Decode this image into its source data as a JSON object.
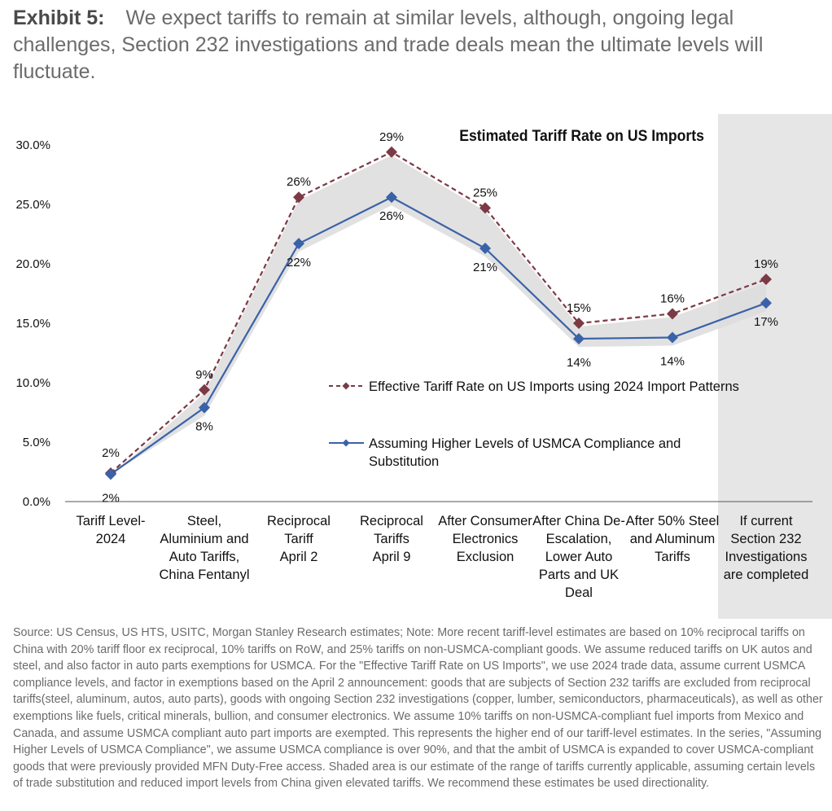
{
  "exhibit": {
    "label": "Exhibit 5:",
    "text": "We expect tariffs to remain at similar levels, although, ongoing legal challenges, Section 232 investigations and trade deals mean the ultimate levels will fluctuate."
  },
  "chart_data": {
    "type": "line",
    "title": "Estimated Tariff Rate on US Imports",
    "categories": [
      [
        "Tariff Level-",
        "2024"
      ],
      [
        "Steel,",
        "Aluminium and",
        "Auto Tariffs,",
        "China Fentanyl"
      ],
      [
        "Reciprocal",
        "Tariff",
        "April 2"
      ],
      [
        "Reciprocal",
        "Tariffs",
        "April 9"
      ],
      [
        "After Consumer",
        "Electronics",
        "Exclusion"
      ],
      [
        "After China De-",
        "Escalation,",
        "Lower Auto",
        "Parts and UK",
        "Deal"
      ],
      [
        "After 50% Steel",
        "and Aluminum",
        "Tariffs"
      ],
      [
        "If current",
        "Section 232",
        "Investigations",
        "are completed"
      ]
    ],
    "ylim": [
      0,
      30
    ],
    "yticks": [
      "0.0%",
      "5.0%",
      "10.0%",
      "15.0%",
      "20.0%",
      "25.0%",
      "30.0%"
    ],
    "series": [
      {
        "name": "Effective Tariff Rate on US Imports using 2024 Import Patterns",
        "color": "#7b3a45",
        "style": "dashed",
        "values": [
          2.4,
          9.4,
          25.6,
          29.4,
          24.7,
          15.0,
          15.8,
          18.7
        ],
        "labels": [
          "2%",
          "9%",
          "26%",
          "29%",
          "25%",
          "15%",
          "16%",
          "19%"
        ]
      },
      {
        "name": "Assuming Higher Levels of USMCA Compliance and Substitution",
        "color": "#3a62a8",
        "style": "solid",
        "values": [
          2.3,
          7.9,
          21.7,
          25.6,
          21.3,
          13.7,
          13.8,
          16.7
        ],
        "labels": [
          "2%",
          "8%",
          "22%",
          "26%",
          "21%",
          "14%",
          "14%",
          "17%"
        ]
      }
    ],
    "shaded_range": true,
    "highlight_column": 7,
    "legend": {
      "placement": "center-right"
    }
  },
  "source": "Source: US Census, US HTS, USITC, Morgan Stanley Research estimates; Note: More recent tariff-level estimates are based on 10% reciprocal tariffs on China with 20% tariff floor ex reciprocal, 10% tariffs on RoW, and 25% tariffs on non-USMCA-compliant goods. We assume reduced tariffs on UK autos and steel, and also factor in auto parts exemptions for USMCA. For the \"Effective Tariff Rate on US Imports\", we use 2024 trade data, assume current USMCA compliance levels, and factor in exemptions based on the April 2 announcement: goods that are subjects of Section 232 tariffs are excluded from reciprocal tariffs(steel, aluminum, autos, auto parts), goods with ongoing Section 232 investigations (copper, lumber, semiconductors, pharmaceuticals), as well as other exemptions like fuels, critical minerals, bullion, and consumer electronics. We assume 10% tariffs on non-USMCA-compliant fuel imports from Mexico and Canada, and assume USMCA compliant auto part imports are exempted. This represents the higher end of our tariff-level estimates. In the series, \"Assuming Higher Levels of USMCA Compliance\", we assume USMCA compliance is over 90%, and that the ambit of USMCA is expanded to cover USMCA-compliant goods that were previously provided MFN Duty-Free access. Shaded area is our estimate of the range of tariffs currently applicable, assuming certain levels of trade substitution and reduced import levels from China given elevated tariffs. We recommend these estimates be used directionality."
}
